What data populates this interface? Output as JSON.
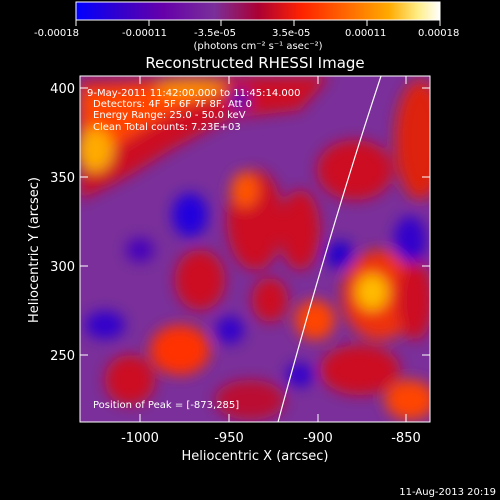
{
  "colorbar": {
    "tick_labels": [
      "-0.00018",
      "-0.00011",
      "-3.5e-05",
      "3.5e-05",
      "0.00011",
      "0.00018"
    ],
    "units": "(photons cm⁻² s⁻¹ asec⁻²)",
    "colormap": [
      "#0000ff",
      "#3300cc",
      "#6600aa",
      "#7a2f9a",
      "#aa0033",
      "#ff2200",
      "#ff6600",
      "#ffaa00",
      "#ffee88",
      "#ffffff"
    ]
  },
  "plot": {
    "title": "Reconstructed RHESSI Image",
    "xlabel": "Heliocentric X (arcsec)",
    "ylabel": "Heliocentric Y (arcsec)",
    "xlim": [
      -1035,
      -835
    ],
    "ylim": [
      210,
      405
    ],
    "x_ticks": [
      "-1000",
      "-950",
      "-900",
      "-850"
    ],
    "y_ticks": [
      "400",
      "350",
      "300",
      "250"
    ],
    "info_lines": [
      "9-May-2011 11:42:00.000 to 11:45:14.000",
      "Detectors: 4F 5F 6F 7F 8F, Att 0",
      "Energy Range: 25.0 - 50.0 keV",
      "Clean     Total counts: 7.23E+03"
    ],
    "peak_label": "Position of Peak = [-873,285]"
  },
  "footer": {
    "date": "11-Aug-2013 20:19"
  }
}
